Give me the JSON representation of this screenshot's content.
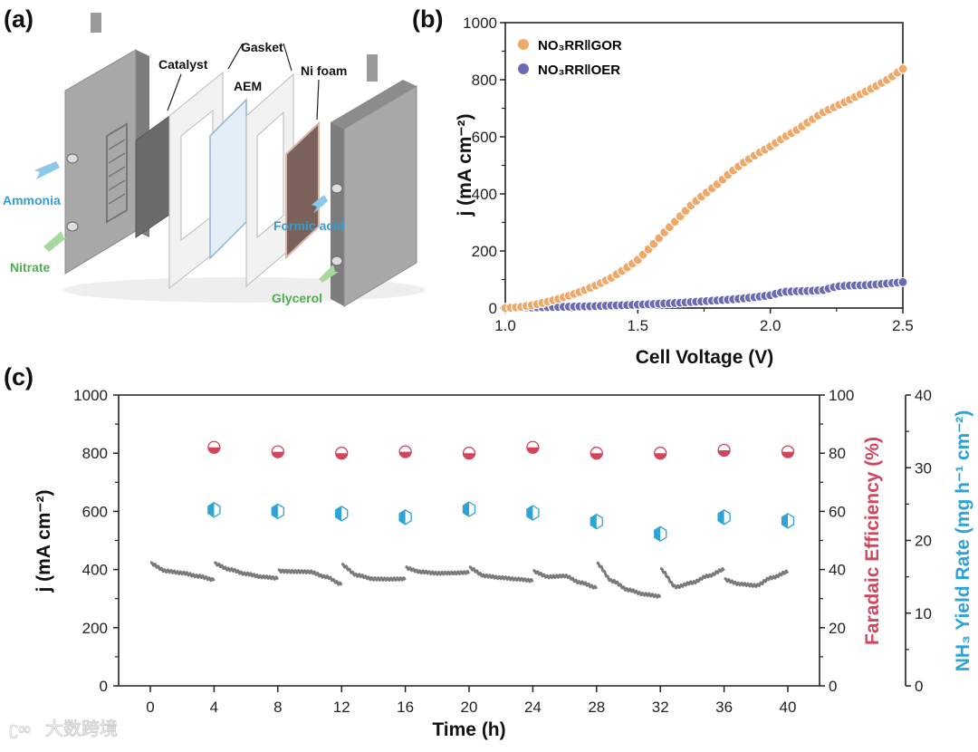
{
  "panels": {
    "a": "(a)",
    "b": "(b)",
    "c": "(c)"
  },
  "diagram": {
    "labels": {
      "catalyst": "Catalyst",
      "gasket": "Gasket",
      "aem": "AEM",
      "ni_foam": "Ni foam",
      "ammonia": "Ammonia",
      "nitrate": "Nitrate",
      "formic_acid": "Formic acid",
      "glycerol": "Glycerol"
    },
    "colors": {
      "product": "#2e9fd6",
      "reactant": "#4caf50"
    }
  },
  "watermark": "大数跨境",
  "chart_data": [
    {
      "type": "scatter",
      "title": "",
      "xlabel": "Cell Voltage (V)",
      "ylabel": "j (mA cm⁻²)",
      "xlim": [
        1.0,
        2.5
      ],
      "ylim": [
        0,
        1000
      ],
      "xticks": [
        "1.0",
        "1.5",
        "2.0",
        "2.5"
      ],
      "yticks": [
        "0",
        "200",
        "400",
        "600",
        "800",
        "1000"
      ],
      "legend_placement": "top-left",
      "x": [
        1.0,
        1.05,
        1.1,
        1.15,
        1.2,
        1.25,
        1.3,
        1.35,
        1.4,
        1.45,
        1.5,
        1.55,
        1.6,
        1.65,
        1.7,
        1.75,
        1.8,
        1.85,
        1.9,
        1.95,
        2.0,
        2.05,
        2.1,
        2.15,
        2.2,
        2.25,
        2.3,
        2.35,
        2.4,
        2.45,
        2.5
      ],
      "series": [
        {
          "name": "NO₃RR‖GOR",
          "color": "#f0a868",
          "values": [
            0,
            3,
            10,
            20,
            32,
            46,
            63,
            83,
            106,
            136,
            169,
            215,
            265,
            312,
            360,
            398,
            434,
            475,
            510,
            540,
            566,
            597,
            624,
            656,
            686,
            708,
            730,
            754,
            778,
            805,
            838
          ]
        },
        {
          "name": "NO₃RR‖OER",
          "color": "#6b6bb5",
          "values": [
            0,
            1,
            2,
            3,
            4,
            5,
            6,
            7,
            9,
            10,
            12,
            14,
            16,
            18,
            21,
            24,
            27,
            30,
            34,
            39,
            45,
            57,
            59,
            60,
            63,
            76,
            79,
            80,
            83,
            87,
            91
          ]
        }
      ]
    },
    {
      "type": "line",
      "title": "",
      "xlabel": "Time (h)",
      "ylabel": "j (mA cm⁻²)",
      "ylabel_right": "Faradaic Efficiency (%)",
      "ylabel_right2": "NH₃ Yield Rate (mg h⁻¹ cm⁻²)",
      "xlim": [
        -2,
        42
      ],
      "ylim": [
        0,
        1000
      ],
      "ylim_right": [
        0,
        100
      ],
      "ylim_right2": [
        0,
        40
      ],
      "xticks": [
        "0",
        "4",
        "8",
        "12",
        "16",
        "20",
        "24",
        "28",
        "32",
        "36",
        "40"
      ],
      "yticks": [
        "0",
        "200",
        "400",
        "600",
        "800",
        "1000"
      ],
      "yticks_right": [
        "0",
        "20",
        "40",
        "60",
        "80",
        "100"
      ],
      "yticks_right2": [
        "0",
        "10",
        "20",
        "30",
        "40"
      ],
      "colors": {
        "current": "#7a7a7a",
        "fe": "#d2455a",
        "yield": "#2fa3d5"
      },
      "current_segments": [
        {
          "t0": 0,
          "values": [
            420,
            395,
            388,
            377,
            365
          ]
        },
        {
          "t0": 4,
          "values": [
            420,
            400,
            385,
            375,
            370
          ]
        },
        {
          "t0": 8,
          "values": [
            395,
            393,
            392,
            375,
            350
          ]
        },
        {
          "t0": 12,
          "values": [
            415,
            380,
            368,
            367,
            368
          ]
        },
        {
          "t0": 16,
          "values": [
            405,
            392,
            387,
            388,
            390
          ]
        },
        {
          "t0": 20,
          "values": [
            405,
            378,
            372,
            367,
            362
          ]
        },
        {
          "t0": 24,
          "values": [
            393,
            375,
            378,
            355,
            338
          ]
        },
        {
          "t0": 28,
          "values": [
            420,
            360,
            330,
            315,
            308
          ]
        },
        {
          "t0": 32,
          "values": [
            400,
            340,
            355,
            378,
            400
          ]
        },
        {
          "t0": 36,
          "values": [
            365,
            350,
            345,
            372,
            392
          ]
        }
      ],
      "time_points": [
        4,
        8,
        12,
        16,
        20,
        24,
        28,
        32,
        36,
        40
      ],
      "faradaic_efficiency": [
        82,
        80.5,
        80,
        80.5,
        80,
        82,
        80,
        80,
        81,
        80.5
      ],
      "nh3_yield_rate": [
        24.2,
        24.0,
        23.7,
        23.2,
        24.3,
        23.8,
        22.6,
        20.9,
        23.2,
        22.7
      ]
    }
  ]
}
